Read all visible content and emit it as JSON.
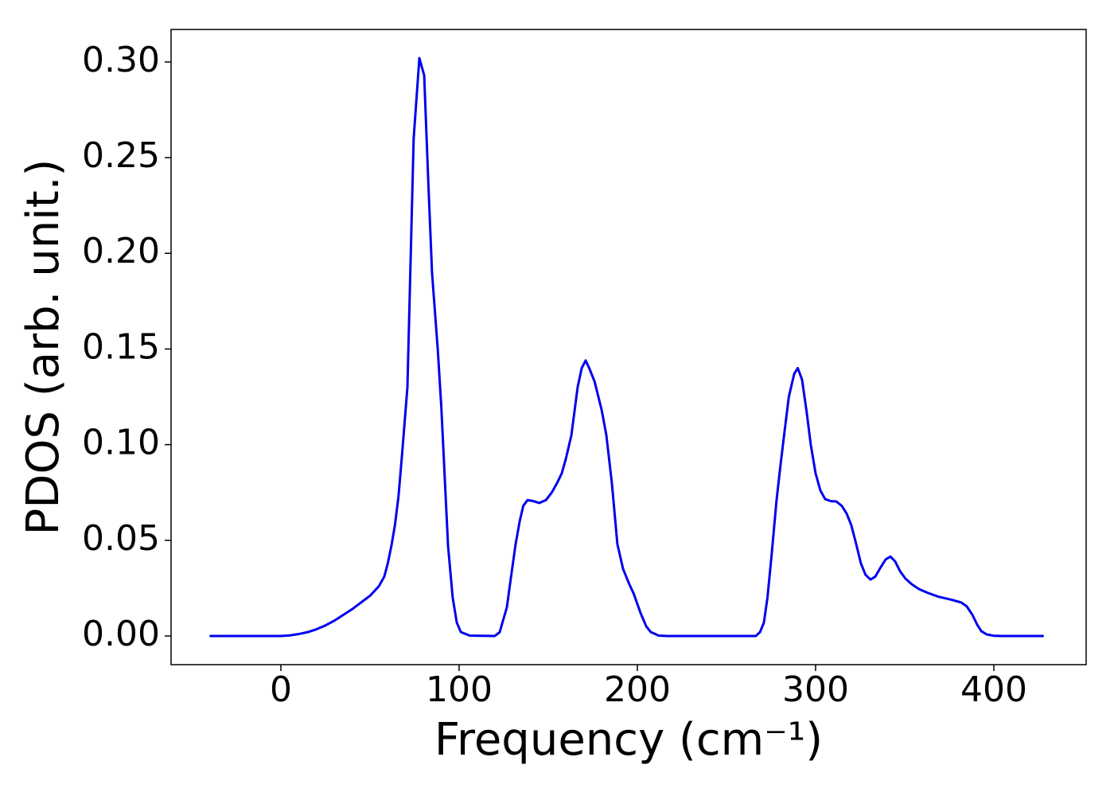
{
  "chart_data": {
    "type": "line",
    "xlabel": "Frequency (cm⁻¹)",
    "ylabel": "PDOS (arb. unit.)",
    "xlim": [
      -61.6,
      451.8
    ],
    "ylim": [
      -0.015,
      0.317
    ],
    "xticks": [
      0,
      100,
      200,
      300,
      400
    ],
    "yticks": [
      {
        "value": 0,
        "label": "0.00"
      },
      {
        "value": 0.05,
        "label": "0.05"
      },
      {
        "value": 0.1,
        "label": "0.10"
      },
      {
        "value": 0.15,
        "label": "0.15"
      },
      {
        "value": 0.2,
        "label": "0.20"
      },
      {
        "value": 0.25,
        "label": "0.25"
      },
      {
        "value": 0.3,
        "label": "0.30"
      }
    ],
    "grid": false,
    "series": [
      {
        "color": "#0000ee",
        "x": [
          -40,
          0,
          5,
          10,
          15,
          20,
          25,
          30,
          35,
          40,
          45,
          50,
          55,
          58,
          60,
          62,
          64,
          66,
          68,
          71,
          74.5,
          77.7,
          80.4,
          82.6,
          84.8,
          88,
          90,
          93.8,
          96.4,
          98.7,
          101,
          106,
          120,
          122.8,
          124,
          126.8,
          129,
          131.7,
          134,
          136,
          138.4,
          141.5,
          145,
          148.7,
          152,
          155,
          157.6,
          160,
          163,
          166.5,
          168.8,
          171,
          173,
          176,
          180,
          182.6,
          185.7,
          188.8,
          192,
          195.5,
          198,
          201.8,
          205,
          207.6,
          212,
          217,
          266.5,
          268.8,
          271,
          273,
          275.4,
          278,
          280.4,
          283,
          285,
          288,
          290,
          292.4,
          295,
          297.3,
          300,
          302.7,
          305.4,
          308.5,
          311.6,
          314.7,
          317.4,
          320,
          322.8,
          325.4,
          328,
          330.8,
          333.5,
          336.6,
          339.3,
          342,
          344.6,
          347.3,
          350.4,
          354,
          358,
          363,
          369,
          376,
          381.7,
          384.8,
          388,
          390.6,
          393,
          396,
          400,
          405,
          428
        ],
        "values": [
          0,
          0,
          0.0003,
          0.001,
          0.002,
          0.0035,
          0.0055,
          0.008,
          0.011,
          0.014,
          0.0175,
          0.021,
          0.026,
          0.031,
          0.038,
          0.047,
          0.058,
          0.073,
          0.095,
          0.13,
          0.26,
          0.302,
          0.293,
          0.24,
          0.19,
          0.15,
          0.12,
          0.047,
          0.02,
          0.007,
          0.002,
          0.0002,
          0,
          0.002,
          0.006,
          0.015,
          0.03,
          0.048,
          0.06,
          0.068,
          0.071,
          0.0705,
          0.0695,
          0.071,
          0.075,
          0.08,
          0.085,
          0.093,
          0.105,
          0.13,
          0.14,
          0.144,
          0.14,
          0.133,
          0.118,
          0.105,
          0.08,
          0.048,
          0.035,
          0.027,
          0.022,
          0.012,
          0.005,
          0.002,
          0.0002,
          0,
          0,
          0.002,
          0.007,
          0.02,
          0.043,
          0.07,
          0.09,
          0.11,
          0.125,
          0.137,
          0.14,
          0.134,
          0.117,
          0.1,
          0.085,
          0.076,
          0.0715,
          0.0705,
          0.0703,
          0.068,
          0.064,
          0.058,
          0.048,
          0.038,
          0.032,
          0.0295,
          0.031,
          0.036,
          0.04,
          0.0415,
          0.039,
          0.034,
          0.03,
          0.027,
          0.0245,
          0.0225,
          0.0205,
          0.019,
          0.0175,
          0.0155,
          0.011,
          0.006,
          0.0025,
          0.0008,
          0.0001,
          0,
          0
        ]
      }
    ]
  }
}
